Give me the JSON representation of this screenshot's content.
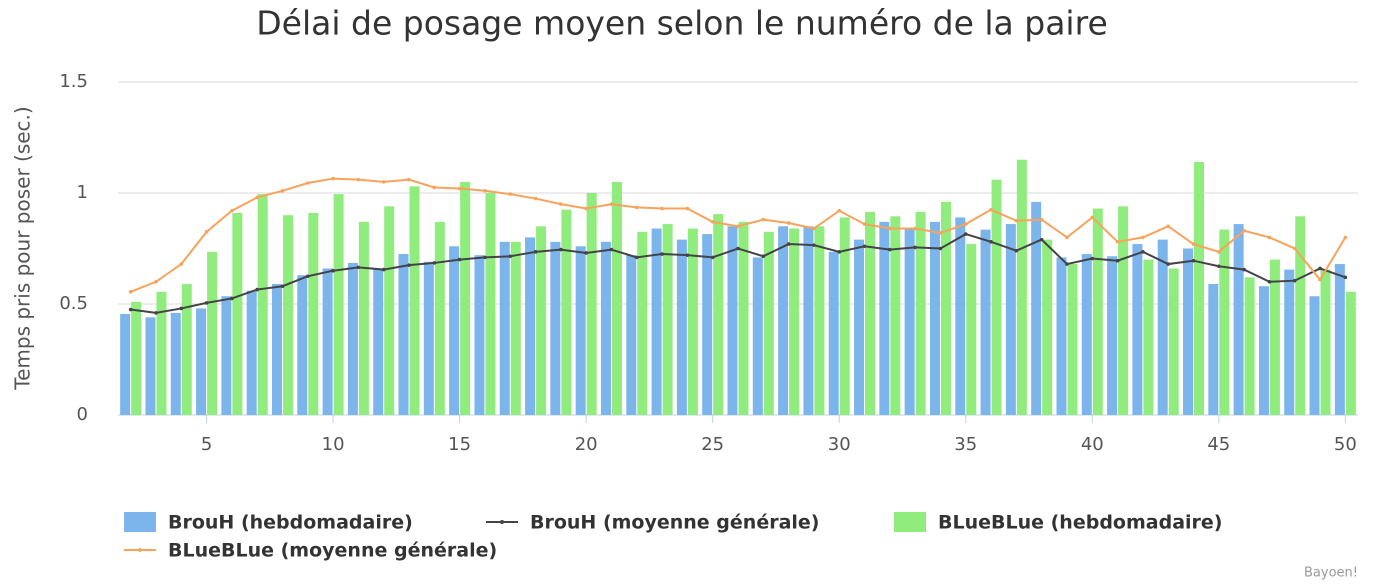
{
  "chart_data": {
    "type": "bar",
    "title": "Délai de posage moyen selon le numéro de la paire",
    "y_label": "Temps pris pour poser (sec.)",
    "credits": "Bayoen!",
    "x": [
      2,
      3,
      4,
      5,
      6,
      7,
      8,
      9,
      10,
      11,
      12,
      13,
      14,
      15,
      16,
      17,
      18,
      19,
      20,
      21,
      22,
      23,
      24,
      25,
      26,
      27,
      28,
      29,
      30,
      31,
      32,
      33,
      34,
      35,
      36,
      37,
      38,
      39,
      40,
      41,
      42,
      43,
      44,
      45,
      46,
      47,
      48,
      49,
      50
    ],
    "xlim": [
      1.5,
      50.5
    ],
    "xticks": [
      5,
      10,
      15,
      20,
      25,
      30,
      35,
      40,
      45,
      50
    ],
    "ylim": [
      0,
      1.5
    ],
    "yticks": [
      0,
      0.5,
      1,
      1.5
    ],
    "grid": true,
    "legend": "bottom",
    "series": [
      {
        "name": "BrouH (hebdomadaire)",
        "type": "bar",
        "color": "#7cb5ec",
        "values": [
          0.455,
          0.44,
          0.46,
          0.48,
          0.535,
          0.56,
          0.59,
          0.63,
          0.66,
          0.685,
          0.66,
          0.725,
          0.69,
          0.76,
          0.72,
          0.78,
          0.8,
          0.78,
          0.76,
          0.78,
          0.72,
          0.84,
          0.79,
          0.815,
          0.85,
          0.71,
          0.85,
          0.85,
          0.735,
          0.79,
          0.87,
          0.84,
          0.87,
          0.89,
          0.835,
          0.86,
          0.96,
          0.71,
          0.725,
          0.715,
          0.77,
          0.79,
          0.75,
          0.59,
          0.86,
          0.58,
          0.655,
          0.535,
          0.68
        ]
      },
      {
        "name": "BrouH (moyenne générale)",
        "type": "line",
        "color": "#434348",
        "values": [
          0.475,
          0.46,
          0.48,
          0.505,
          0.525,
          0.565,
          0.58,
          0.625,
          0.65,
          0.665,
          0.655,
          0.675,
          0.685,
          0.7,
          0.71,
          0.715,
          0.735,
          0.745,
          0.73,
          0.745,
          0.71,
          0.725,
          0.72,
          0.71,
          0.75,
          0.715,
          0.77,
          0.765,
          0.735,
          0.76,
          0.745,
          0.755,
          0.75,
          0.815,
          0.78,
          0.74,
          0.79,
          0.68,
          0.705,
          0.695,
          0.735,
          0.68,
          0.695,
          0.67,
          0.655,
          0.6,
          0.605,
          0.66,
          0.62
        ]
      },
      {
        "name": "BLueBLue (hebdomadaire)",
        "type": "bar",
        "color": "#90ed7d",
        "values": [
          0.51,
          0.555,
          0.59,
          0.735,
          0.91,
          0.995,
          0.9,
          0.91,
          0.995,
          0.87,
          0.94,
          1.03,
          0.87,
          1.05,
          1.0,
          0.78,
          0.85,
          0.925,
          1.0,
          1.05,
          0.825,
          0.86,
          0.84,
          0.905,
          0.87,
          0.825,
          0.84,
          0.85,
          0.89,
          0.915,
          0.895,
          0.915,
          0.96,
          0.77,
          1.06,
          1.15,
          0.79,
          0.68,
          0.93,
          0.94,
          0.7,
          0.66,
          1.14,
          0.835,
          0.62,
          0.7,
          0.895,
          0.655,
          0.555
        ]
      },
      {
        "name": "BLueBLue (moyenne générale)",
        "type": "line",
        "color": "#f7a35c",
        "values": [
          0.555,
          0.6,
          0.68,
          0.825,
          0.92,
          0.98,
          1.01,
          1.045,
          1.065,
          1.06,
          1.05,
          1.06,
          1.025,
          1.02,
          1.01,
          0.995,
          0.975,
          0.95,
          0.93,
          0.95,
          0.935,
          0.93,
          0.93,
          0.87,
          0.85,
          0.88,
          0.865,
          0.84,
          0.92,
          0.86,
          0.84,
          0.84,
          0.82,
          0.86,
          0.925,
          0.875,
          0.88,
          0.8,
          0.89,
          0.78,
          0.8,
          0.85,
          0.77,
          0.735,
          0.83,
          0.8,
          0.75,
          0.61,
          0.8
        ]
      }
    ]
  }
}
